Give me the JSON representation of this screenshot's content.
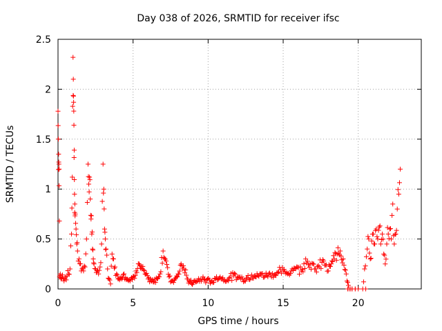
{
  "chart_data": {
    "type": "scatter",
    "title": "Day 038 of 2026, SRMTID for receiver ifsc",
    "xlabel": "GPS time / hours",
    "ylabel": "SRMTID / TECUs",
    "xlim": [
      0,
      24.2
    ],
    "ylim": [
      0,
      2.5
    ],
    "x_ticks": [
      "0",
      "5",
      "10",
      "15",
      "20"
    ],
    "x_tick_values": [
      0,
      5,
      10,
      15,
      20
    ],
    "y_ticks": [
      "0",
      "0.5",
      "1",
      "1.5",
      "2",
      "2.5"
    ],
    "y_tick_values": [
      0,
      0.5,
      1,
      1.5,
      2,
      2.5
    ],
    "grid": true,
    "marker": "+",
    "series": [
      {
        "name": "SRMTID",
        "color": "#ff0000",
        "x": [
          0.0,
          0.02,
          0.04,
          0.06,
          0.08,
          0.1,
          0.15,
          0.2,
          0.3,
          0.4,
          0.5,
          0.6,
          0.7,
          0.8,
          0.9,
          0.95,
          1.0,
          1.02,
          1.04,
          1.06,
          1.08,
          1.1,
          1.12,
          1.15,
          1.2,
          1.25,
          1.3,
          1.4,
          1.5,
          1.6,
          1.7,
          1.8,
          1.9,
          2.0,
          2.05,
          2.1,
          2.15,
          2.2,
          2.25,
          2.3,
          2.35,
          2.4,
          2.5,
          2.6,
          2.7,
          2.8,
          2.9,
          3.0,
          3.05,
          3.1,
          3.15,
          3.2,
          3.3,
          3.4,
          3.5,
          3.6,
          3.7,
          3.8,
          3.9,
          4.0,
          4.2,
          4.4,
          4.6,
          4.8,
          5.0,
          5.2,
          5.4,
          5.6,
          5.8,
          6.0,
          6.2,
          6.4,
          6.6,
          6.8,
          7.0,
          7.2,
          7.4,
          7.6,
          7.8,
          8.0,
          8.2,
          8.4,
          8.6,
          8.8,
          9.0,
          9.3,
          9.6,
          9.9,
          10.2,
          10.5,
          10.8,
          11.1,
          11.4,
          11.7,
          12.0,
          12.3,
          12.6,
          12.9,
          13.2,
          13.5,
          13.8,
          14.1,
          14.4,
          14.7,
          15.0,
          15.3,
          15.6,
          15.9,
          16.2,
          16.5,
          16.8,
          17.1,
          17.4,
          17.7,
          18.0,
          18.2,
          18.4,
          18.6,
          18.8,
          19.0,
          19.2,
          19.4,
          19.6,
          19.8,
          20.0,
          20.3,
          20.6,
          20.7,
          20.8,
          20.9,
          21.0,
          21.1,
          21.2,
          21.3,
          21.4,
          21.5,
          21.6,
          21.7,
          21.8,
          21.9,
          22.0,
          22.1,
          22.2,
          22.3,
          22.4,
          22.5,
          22.6,
          22.7,
          22.8
        ],
        "y": [
          1.78,
          1.5,
          1.35,
          1.25,
          1.2,
          0.12,
          0.15,
          0.1,
          0.14,
          0.08,
          0.12,
          0.13,
          0.15,
          0.2,
          0.55,
          1.12,
          2.32,
          2.1,
          1.87,
          1.64,
          1.39,
          0.95,
          0.85,
          0.75,
          0.6,
          0.45,
          0.38,
          0.3,
          0.25,
          0.2,
          0.18,
          0.22,
          0.5,
          1.25,
          1.05,
          1.12,
          0.9,
          0.7,
          0.55,
          0.4,
          0.3,
          0.25,
          0.2,
          0.18,
          0.15,
          0.22,
          0.45,
          1.25,
          1.0,
          0.6,
          0.5,
          0.4,
          0.2,
          0.1,
          0.05,
          0.35,
          0.3,
          0.22,
          0.15,
          0.1,
          0.12,
          0.15,
          0.1,
          0.08,
          0.12,
          0.18,
          0.25,
          0.2,
          0.15,
          0.1,
          0.08,
          0.07,
          0.1,
          0.15,
          0.38,
          0.28,
          0.12,
          0.08,
          0.1,
          0.15,
          0.25,
          0.2,
          0.1,
          0.07,
          0.06,
          0.08,
          0.1,
          0.09,
          0.07,
          0.1,
          0.12,
          0.09,
          0.11,
          0.13,
          0.12,
          0.1,
          0.11,
          0.14,
          0.12,
          0.15,
          0.13,
          0.16,
          0.14,
          0.17,
          0.18,
          0.15,
          0.2,
          0.22,
          0.18,
          0.3,
          0.25,
          0.2,
          0.22,
          0.28,
          0.18,
          0.25,
          0.3,
          0.35,
          0.38,
          0.3,
          0.15,
          0.0,
          0.0,
          0.0,
          0.0,
          0.0,
          0.4,
          0.5,
          0.3,
          0.48,
          0.55,
          0.45,
          0.6,
          0.5,
          0.62,
          0.45,
          0.55,
          0.35,
          0.25,
          0.45,
          0.55,
          0.6,
          0.5,
          0.85,
          0.45,
          0.55,
          0.8,
          0.95,
          1.2
        ],
        "y_extra_cluster": "dense"
      }
    ]
  }
}
